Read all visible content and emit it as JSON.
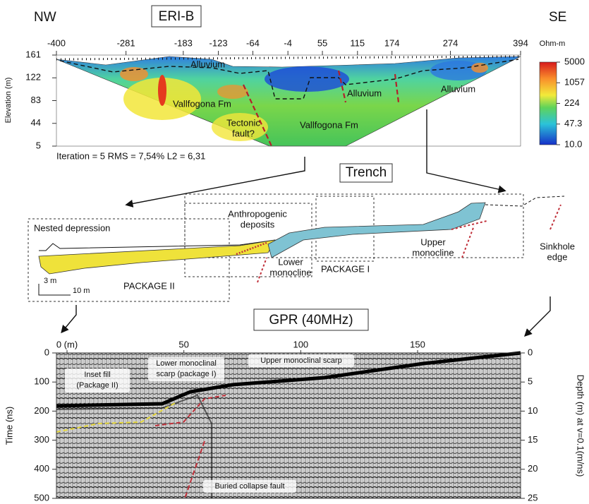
{
  "eri": {
    "title": "ERI-B",
    "nw": "NW",
    "se": "SE",
    "unit": "Ohm-m",
    "y_label": "Elevation (m)",
    "x_ticks": [
      -400,
      -281,
      -183,
      -123,
      -64,
      -4,
      55,
      115,
      174,
      274,
      394
    ],
    "y_ticks": [
      161,
      122,
      83,
      44,
      5
    ],
    "color_scale": "log",
    "color_ticks": [
      5000,
      1057,
      224,
      47.3,
      {
        "value": 10,
        "label": "10.0"
      }
    ],
    "alluvium": [
      "Alluvium",
      "Alluvium",
      "Alluvium"
    ],
    "vallfogona": [
      "Vallfogona Fm",
      "Vallfogona Fm"
    ],
    "fault": [
      "Tectonic",
      "fault?"
    ],
    "stats": "Iteration = 5     RMS = 7,54%     L2 = 6,31"
  },
  "trench": {
    "title": "Trench",
    "nested": "Nested depression",
    "anthropogenic": [
      "Anthropogenic",
      "deposits"
    ],
    "package2": "PACKAGE II",
    "package1": "PACKAGE I",
    "lower": [
      "Lower",
      "monocline"
    ],
    "upper": [
      "Upper",
      "monocline"
    ],
    "sinkhole": [
      "Sinkhole",
      "edge"
    ],
    "scale_v": "3 m",
    "scale_h": "10 m"
  },
  "gpr": {
    "title": "GPR (40MHz)",
    "x_ticks": [
      {
        "value": 0,
        "label": "0 (m)"
      },
      50,
      100,
      150
    ],
    "time_ticks": [
      0,
      100,
      200,
      300,
      400,
      500
    ],
    "time_label": "Time (ns)",
    "depth_ticks": [
      0,
      5,
      10,
      15,
      20,
      25
    ],
    "depth_label": "Depth (m) at v=0.1(m/ns)",
    "inset": [
      "Inset fill",
      "(Package II)"
    ],
    "lower_scarp": [
      "Lower monoclinal",
      "scarp (package I)"
    ],
    "upper_scarp": "Upper monoclinal scarp",
    "fault": "Buried collapse fault"
  }
}
